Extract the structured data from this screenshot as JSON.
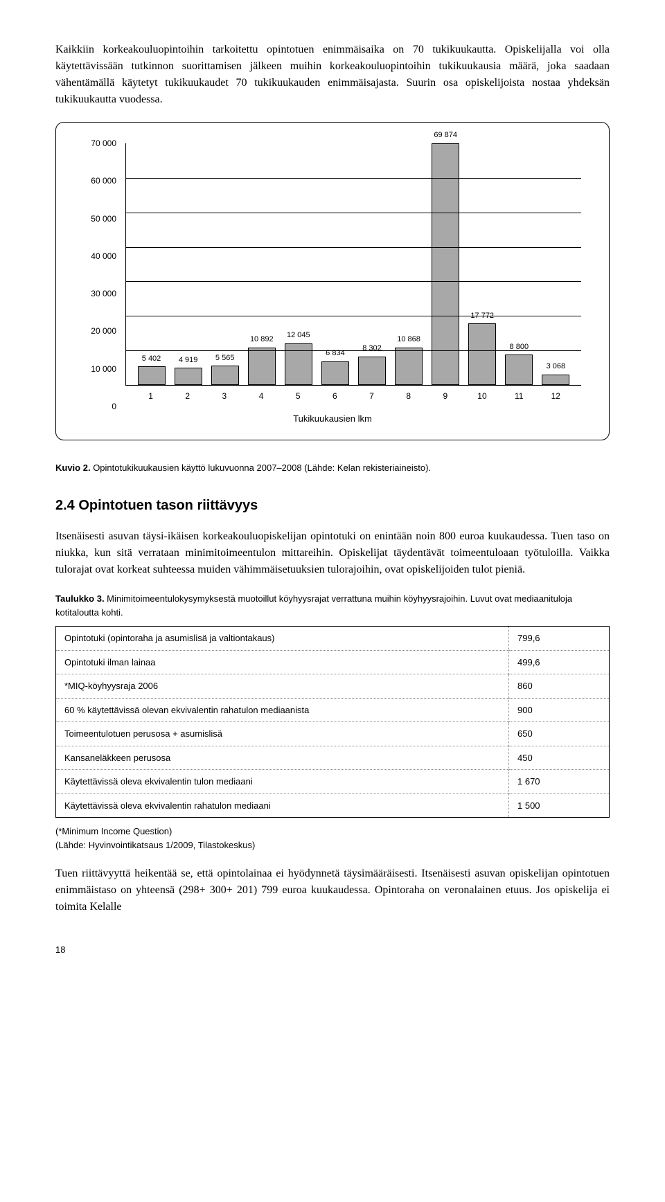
{
  "paragraphs": {
    "p1": "Kaikkiin korkeakouluopintoihin tarkoitettu opintotuen enimmäisaika on 70 tukikuukautta. Opiskelijalla voi olla käytettävissään tutkinnon suorittamisen jälkeen muihin korkeakouluopintoihin tukikuukausia määrä, joka saadaan vähentämällä käytetyt tukikuukaudet 70 tukikuukauden enimmäisajasta. Suurin osa opiskelijoista nostaa yhdeksän tukikuukautta vuodessa.",
    "p2": "Itsenäisesti asuvan täysi-ikäisen korkeakouluopiskelijan opintotuki on enintään noin 800 euroa kuukaudessa. Tuen taso on niukka, kun sitä verrataan minimitoimeentulon mittareihin. Opiskelijat täydentävät toimeentuloaan työtuloilla. Vaikka tulorajat ovat korkeat suhteessa muiden vähimmäisetuuksien tulorajoihin, ovat opiskelijoiden tulot pieniä.",
    "p3": "Tuen riittävyyttä heikentää se, että opintolainaa ei hyödynnetä täysimääräisesti. Itsenäisesti asuvan opiskelijan opintotuen enimmäistaso on yhteensä (298+ 300+ 201) 799 euroa kuukaudessa. Opintoraha on veronalainen etuus. Jos opiskelija ei toimita Kelalle"
  },
  "chart": {
    "type": "bar",
    "y_ticks": [
      "70 000",
      "60 000",
      "50 000",
      "40 000",
      "30 000",
      "20 000",
      "10 000",
      "0"
    ],
    "y_max": 70000,
    "x_title": "Tukikuukausien lkm",
    "categories": [
      "1",
      "2",
      "3",
      "4",
      "5",
      "6",
      "7",
      "8",
      "9",
      "10",
      "11",
      "12"
    ],
    "values": [
      5402,
      4919,
      5565,
      10892,
      12045,
      6834,
      8302,
      10868,
      69874,
      17772,
      8800,
      3068
    ],
    "value_labels": [
      "5 402",
      "4 919",
      "5 565",
      "10 892",
      "12 045",
      "6 834",
      "8 302",
      "10 868",
      "69 874",
      "17 772",
      "8 800",
      "3 068"
    ],
    "bar_color": "#a8a8a8"
  },
  "caption": {
    "prefix": "Kuvio 2.",
    "text": " Opintotukikuukausien käyttö lukuvuonna 2007–2008 (Lähde: Kelan rekisteriaineisto)."
  },
  "section_heading": "2.4 Opintotuen tason riittävyys",
  "table_caption": {
    "prefix": "Taulukko 3.",
    "text": " Minimitoimeentulokysymyksestä muotoillut köyhyysrajat verrattuna muihin köyhyysrajoihin. Luvut ovat mediaanituloja kotitaloutta kohti."
  },
  "table": {
    "rows": [
      {
        "label": "Opintotuki (opintoraha ja asumislisä ja valtiontakaus)",
        "value": "799,6"
      },
      {
        "label": "Opintotuki ilman lainaa",
        "value": "499,6"
      },
      {
        "label": "*MIQ-köyhyysraja 2006",
        "value": "860"
      },
      {
        "label": "60 % käytettävissä olevan ekvivalentin rahatulon mediaanista",
        "value": "900"
      },
      {
        "label": "Toimeentulotuen perusosa + asumislisä",
        "value": "650"
      },
      {
        "label": "Kansaneläkkeen perusosa",
        "value": "450"
      },
      {
        "label": "Käytettävissä oleva ekvivalentin tulon mediaani",
        "value": "1 670"
      },
      {
        "label": "Käytettävissä oleva ekvivalentin rahatulon mediaani",
        "value": "1 500"
      }
    ]
  },
  "footnote": {
    "line1": "(*Minimum Income Question)",
    "line2": "(Lähde: Hyvinvointikatsaus 1/2009, Tilastokeskus)"
  },
  "page_num": "18"
}
